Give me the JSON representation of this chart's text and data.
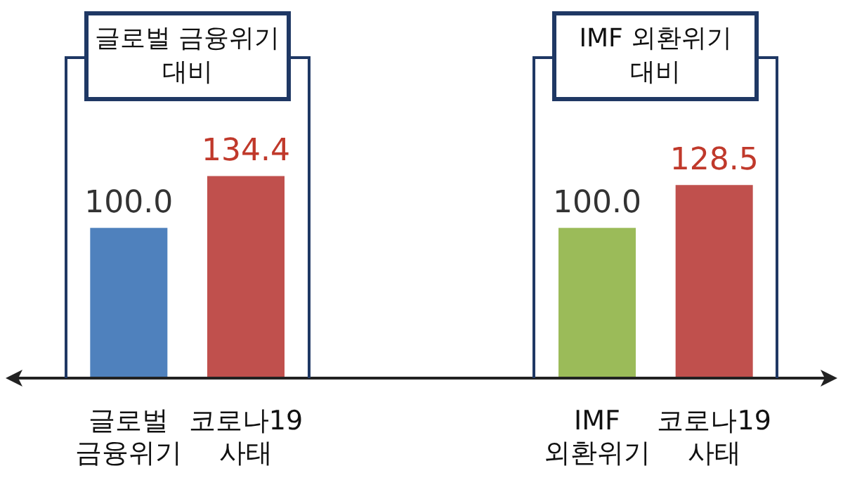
{
  "chart_data": {
    "type": "bar",
    "categories": [
      "글로벌 금융위기",
      "코로나19 사태",
      null,
      null,
      "IMF 외환위기",
      "코로나19 사태"
    ],
    "values": [
      100.0,
      134.4,
      null,
      null,
      100.0,
      128.5
    ],
    "colors": [
      "#4f81bd",
      "#c0504d",
      "#c0504d",
      "#c0504d",
      "#9bbb59",
      "#c0504d"
    ],
    "value_labels": [
      "100.0",
      "134.4",
      null,
      null,
      "100.0",
      "128.5"
    ],
    "annotations": [
      "글로벌 금융위기 대비",
      "IMF 외환위기 대비"
    ]
  }
}
